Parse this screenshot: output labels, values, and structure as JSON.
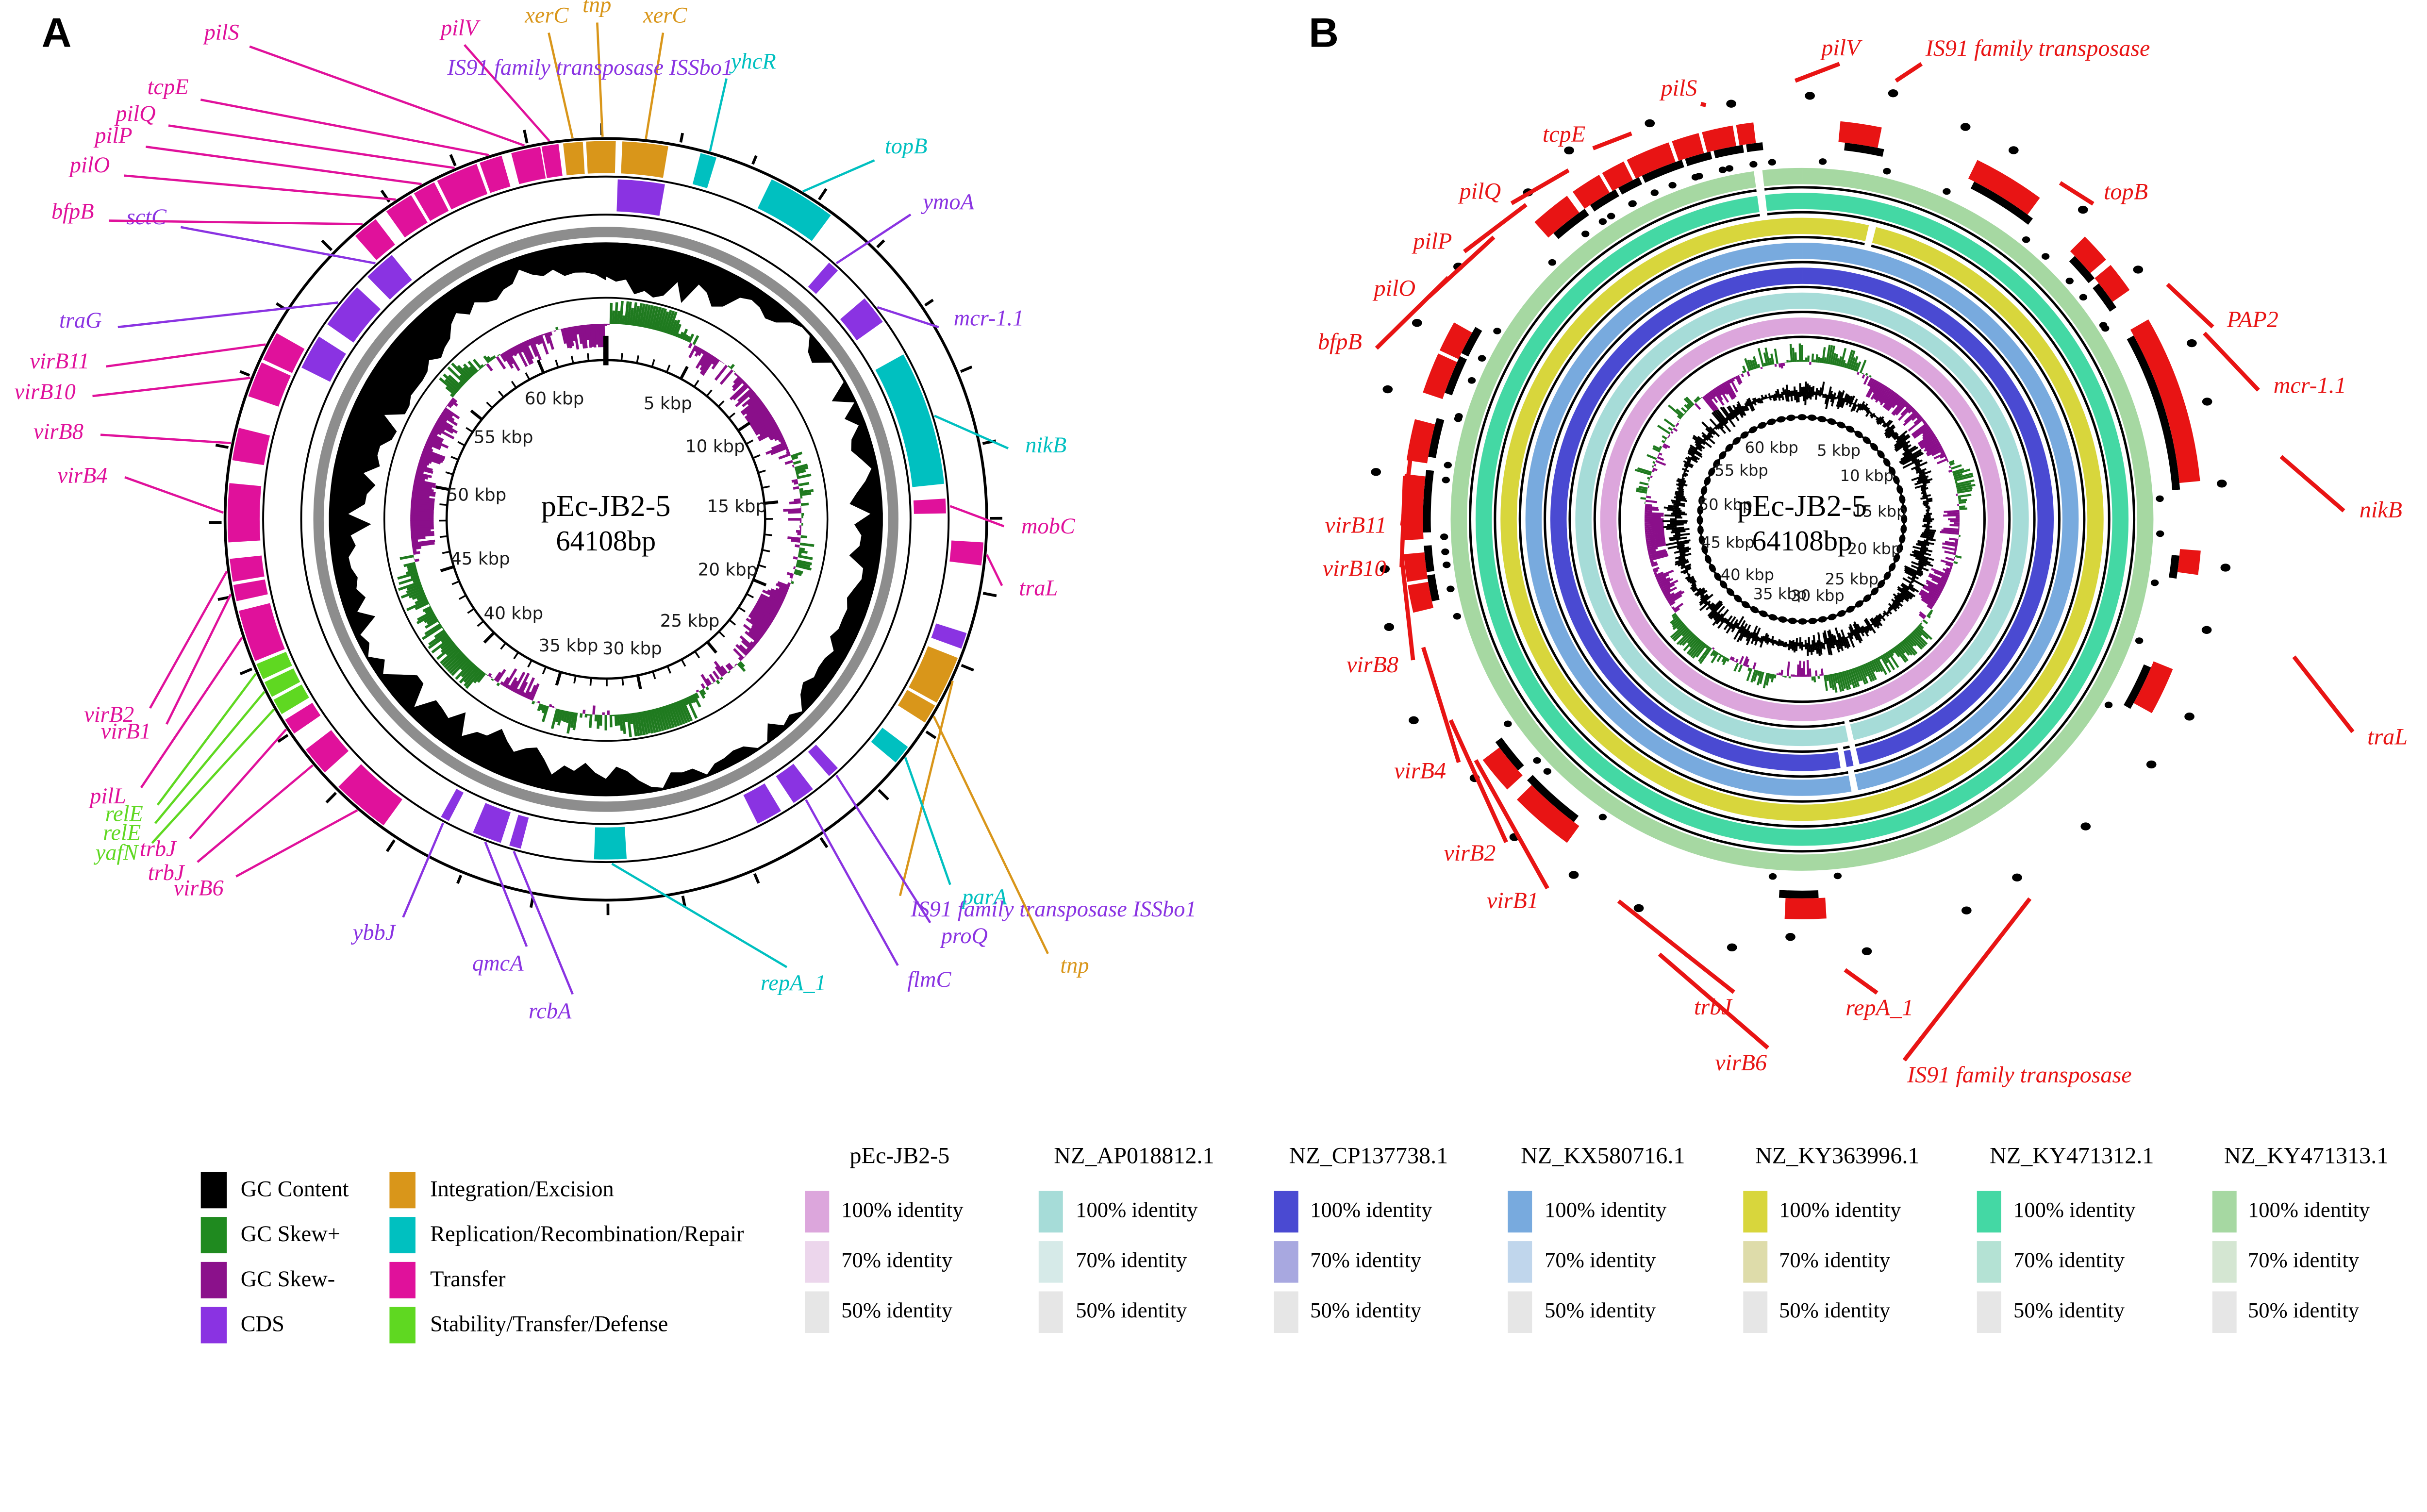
{
  "figure": {
    "background": "#ffffff"
  },
  "chart_data": [
    {
      "type": "circular-genome-map",
      "panel_letter": "A",
      "title": "pEc-JB2-5",
      "subtitle": "64108bp",
      "length_kbp": 64.108,
      "scale_ticks_kbp": [
        5,
        10,
        15,
        20,
        25,
        30,
        35,
        40,
        45,
        50,
        55,
        60
      ],
      "scale_labels": [
        "5 kbp",
        "10 kbp",
        "15 kbp",
        "20 kbp",
        "25 kbp",
        "30 kbp",
        "35 kbp",
        "40 kbp",
        "45 kbp",
        "50 kbp",
        "55 kbp",
        "60 kbp"
      ],
      "scale_unit": "kbp",
      "inner_tracks": [
        "GC Content",
        "GC Skew+",
        "GC Skew-"
      ],
      "category_colors": {
        "transfer": "#e0119b",
        "cds": "#8a33e2",
        "integration": "#d9961a",
        "replication": "#00c0c0",
        "stability": "#5fd821",
        "gc_content": "#000000",
        "gc_skew_plus": "#1f7a1f",
        "gc_skew_minus": "#8a0f8a",
        "gray_ring": "#8d8d8d"
      },
      "genes": [
        {
          "l": "pilV",
          "c": "transfer",
          "r": 1,
          "s": 350.2,
          "e": 352.8,
          "a": 351.5,
          "la": 343.4,
          "lr": 296,
          "an": "middle"
        },
        {
          "l": "xerC",
          "c": "integration",
          "r": 1,
          "s": 353.5,
          "e": 356.5,
          "a": 355,
          "la": 353.3,
          "lr": 293,
          "an": "middle"
        },
        {
          "l": "tnp",
          "c": "integration",
          "r": 1,
          "s": 357,
          "e": 361.5,
          "a": 359.5,
          "la": 359,
          "lr": 297,
          "an": "middle"
        },
        {
          "l": "xerC",
          "c": "integration",
          "r": 1,
          "s": 2.5,
          "e": 9.5,
          "a": 6,
          "la": 6.7,
          "lr": 293,
          "an": "middle"
        },
        {
          "l": "IS91 family transposase ISSbo1",
          "c": "cds",
          "r": 2,
          "s": 2,
          "e": 10,
          "a": 6,
          "la": 358,
          "lr": 261,
          "an": "middle",
          "nl": true
        },
        {
          "l": "yhcR",
          "c": "replication",
          "r": 1,
          "s": 14.5,
          "e": 17,
          "a": 15.8,
          "la": 15.3,
          "lr": 274,
          "an": "start"
        },
        {
          "l": "topB",
          "c": "replication",
          "r": 1,
          "s": 26,
          "e": 36.5,
          "a": 31,
          "la": 36.8,
          "lr": 269,
          "an": "start"
        },
        {
          "l": "ymoA",
          "c": "cds",
          "r": 2,
          "s": 41,
          "e": 43,
          "a": 42,
          "la": 45,
          "lr": 259,
          "an": "start"
        },
        {
          "l": "mcr-1.1",
          "c": "cds",
          "r": 2,
          "s": 49.5,
          "e": 54.5,
          "a": 52,
          "la": 60,
          "lr": 232,
          "an": "start"
        },
        {
          "l": "nikB",
          "c": "replication",
          "r": 2,
          "s": 61,
          "e": 84,
          "a": 72.5,
          "la": 80,
          "lr": 246,
          "an": "start"
        },
        {
          "l": "mobC",
          "c": "transfer",
          "r": 2,
          "s": 86.5,
          "e": 89,
          "a": 87.8,
          "la": 91,
          "lr": 240,
          "an": "start"
        },
        {
          "l": "traL",
          "c": "transfer",
          "r": 1,
          "s": 93.5,
          "e": 97,
          "a": 95.3,
          "la": 99.5,
          "lr": 242,
          "an": "start"
        },
        {
          "l": "IS91 family transposase ISSbo1",
          "c": "integration",
          "lc": "cds",
          "r": 1,
          "s": 111.5,
          "e": 119,
          "a": 115,
          "la": 142,
          "lr": 286,
          "an": "start"
        },
        {
          "l": "tnp",
          "c": "integration",
          "r": 1,
          "s": 119.5,
          "e": 122.5,
          "a": 121,
          "la": 134.5,
          "lr": 368,
          "an": "start"
        },
        {
          "l": "parA",
          "c": "replication",
          "r": 1,
          "s": 127,
          "e": 130,
          "a": 128.5,
          "la": 136.7,
          "lr": 300,
          "an": "start"
        },
        {
          "l": "proQ",
          "c": "cds",
          "r": 2,
          "s": 137,
          "e": 139,
          "a": 138,
          "la": 141.2,
          "lr": 309,
          "an": "start"
        },
        {
          "l": "flmC",
          "c": "cds",
          "r": 2,
          "s": 142.5,
          "e": 146.5,
          "a": 144.5,
          "la": 146.8,
          "lr": 318,
          "an": "start"
        },
        {
          "l": "repA_1",
          "c": "replication",
          "r": 2,
          "s": 176.5,
          "e": 182,
          "a": 179,
          "la": 158,
          "lr": 289,
          "an": "middle"
        },
        {
          "l": "rcbA",
          "c": "cds",
          "r": 2,
          "s": 194.5,
          "e": 196.5,
          "a": 195.5,
          "la": 184,
          "lr": 285,
          "an": "end"
        },
        {
          "l": "qmcA",
          "c": "cds",
          "r": 2,
          "s": 198,
          "e": 203,
          "a": 200.5,
          "la": 190.5,
          "lr": 261,
          "an": "end"
        },
        {
          "l": "ybbJ",
          "c": "cds",
          "r": 2,
          "s": 207.5,
          "e": 209,
          "a": 208.2,
          "la": 207,
          "lr": 268,
          "an": "end"
        },
        {
          "l": "virB6",
          "c": "transfer",
          "r": 1,
          "s": 216,
          "e": 225,
          "a": 220.5,
          "la": 226,
          "lr": 307,
          "an": "end"
        },
        {
          "l": "trbJ",
          "c": "transfer",
          "r": 1,
          "s": 228,
          "e": 232.5,
          "a": 230,
          "la": 230,
          "lr": 318,
          "an": "end"
        },
        {
          "l": "trbJ",
          "c": "transfer",
          "r": 1,
          "s": 235.5,
          "e": 238,
          "a": 236.7,
          "la": 232.5,
          "lr": 313,
          "an": "end"
        },
        {
          "l": "yafN",
          "c": "stability",
          "r": 1,
          "s": 239,
          "e": 241.5,
          "a": 240.2,
          "la": 234.5,
          "lr": 332,
          "an": "end"
        },
        {
          "l": "relE",
          "c": "stability",
          "r": 1,
          "s": 242,
          "e": 244.5,
          "a": 243.2,
          "la": 236,
          "lr": 324,
          "an": "end"
        },
        {
          "l": "relE",
          "c": "stability",
          "r": 1,
          "s": 245,
          "e": 247.5,
          "a": 246.2,
          "la": 237.5,
          "lr": 317,
          "an": "end"
        },
        {
          "l": "pilL",
          "c": "transfer",
          "r": 1,
          "s": 248,
          "e": 256,
          "a": 252,
          "la": 240,
          "lr": 320,
          "an": "end"
        },
        {
          "l": "virB1",
          "c": "transfer",
          "r": 1,
          "s": 257.5,
          "e": 260,
          "a": 258.7,
          "la": 245,
          "lr": 290,
          "an": "end"
        },
        {
          "l": "virB2",
          "c": "transfer",
          "r": 1,
          "s": 260.5,
          "e": 264,
          "a": 262.2,
          "la": 247.5,
          "lr": 295,
          "an": "end"
        },
        {
          "l": "virB4",
          "c": "transfer",
          "r": 1,
          "s": 266.5,
          "e": 275.5,
          "a": 271,
          "la": 275,
          "lr": 289,
          "an": "end"
        },
        {
          "l": "virB8",
          "c": "transfer",
          "r": 1,
          "s": 279,
          "e": 284,
          "a": 281.5,
          "la": 279.5,
          "lr": 306,
          "an": "end"
        },
        {
          "l": "virB10",
          "c": "transfer",
          "r": 1,
          "s": 289,
          "e": 294.5,
          "a": 291.7,
          "la": 283.5,
          "lr": 315,
          "an": "end"
        },
        {
          "l": "virB11",
          "c": "transfer",
          "r": 1,
          "s": 295,
          "e": 299.5,
          "a": 297.2,
          "la": 287,
          "lr": 312,
          "an": "end"
        },
        {
          "l": "traG",
          "c": "cds",
          "r": 2,
          "s": 305,
          "e": 313,
          "a": 309,
          "la": 291.5,
          "lr": 313,
          "an": "end"
        },
        {
          "l": "sctC",
          "c": "cds",
          "r": 2,
          "s": 315.5,
          "e": 321,
          "a": 318,
          "la": 304.5,
          "lr": 308,
          "an": "end"
        },
        {
          "l": "bfpB",
          "c": "transfer",
          "r": 1,
          "s": 318.5,
          "e": 322.5,
          "a": 320.5,
          "la": 301,
          "lr": 345,
          "an": "end"
        },
        {
          "l": "pilO",
          "c": "transfer",
          "r": 1,
          "s": 324.5,
          "e": 329,
          "a": 326.7,
          "la": 305.5,
          "lr": 352,
          "an": "end"
        },
        {
          "l": "pilP",
          "c": "transfer",
          "r": 1,
          "s": 329.5,
          "e": 333,
          "a": 331.2,
          "la": 309,
          "lr": 352,
          "an": "end"
        },
        {
          "l": "pilQ",
          "c": "transfer",
          "r": 1,
          "s": 333.5,
          "e": 340,
          "a": 336.7,
          "la": 312,
          "lr": 350,
          "an": "end"
        },
        {
          "l": "tcpE",
          "c": "transfer",
          "r": 1,
          "s": 340.5,
          "e": 344,
          "a": 342.2,
          "la": 316,
          "lr": 347,
          "an": "end"
        },
        {
          "l": "pilS",
          "c": "transfer",
          "r": 1,
          "s": 345.5,
          "e": 350,
          "a": 347.7,
          "la": 323,
          "lr": 352,
          "an": "end"
        }
      ],
      "unlabeled_arcs": [
        {
          "c": "cds",
          "r": 2,
          "s": 296.5,
          "e": 302.5
        },
        {
          "c": "cds",
          "r": 1,
          "s": 107.5,
          "e": 110
        },
        {
          "c": "cds",
          "r": 2,
          "s": 149,
          "e": 153.5
        }
      ]
    },
    {
      "type": "circular-genome-map-comparison",
      "panel_letter": "B",
      "title": "pEc-JB2-5",
      "subtitle": "64108bp",
      "length_kbp": 64.108,
      "scale_labels": [
        "5 kbp",
        "10 kbp",
        "15 kbp",
        "20 kbp",
        "25 kbp",
        "30 kbp",
        "35 kbp",
        "40 kbp",
        "45 kbp",
        "50 kbp",
        "55 kbp",
        "60 kbp"
      ],
      "gene_color": "#e81414",
      "rings_outer_to_inner": [
        {
          "name": "NZ_KY471313.1",
          "color": "#a6d8a2"
        },
        {
          "name": "NZ_KY471312.1",
          "color": "#44d8a4"
        },
        {
          "name": "NZ_KY363996.1",
          "color": "#d8d63c"
        },
        {
          "name": "NZ_KX580716.1",
          "color": "#78aade"
        },
        {
          "name": "NZ_CP137738.1",
          "color": "#4a4ad2"
        },
        {
          "name": "NZ_AP018812.1",
          "color": "#a6dcd8"
        },
        {
          "name": "pEc-JB2-5",
          "color": "#dca6dc"
        }
      ],
      "ring_gaps": [
        {
          "ring": 0,
          "a": 352.8
        },
        {
          "ring": 1,
          "a": 352.8
        },
        {
          "ring": 2,
          "a": 13.5
        },
        {
          "ring": 3,
          "a": 169
        },
        {
          "ring": 4,
          "a": 167.5
        },
        {
          "ring": 4,
          "a": 170.5
        },
        {
          "ring": 5,
          "a": 167.5
        }
      ],
      "genes": [
        {
          "l": "pilV",
          "s": 350.5,
          "e": 353,
          "a": 351.7,
          "la": 4.7,
          "lr": 273,
          "an": "middle"
        },
        {
          "l": "IS91 family transposase",
          "s": 5.5,
          "e": 11.5,
          "a": 8.5,
          "la": 14.7,
          "lr": 281,
          "an": "start"
        },
        {
          "l": "topB",
          "s": 26,
          "e": 36.5,
          "a": 31,
          "la": 42.7,
          "lr": 257,
          "an": "start"
        },
        {
          "l": "PAP2",
          "s": 45,
          "e": 49.5,
          "a": 47.2,
          "la": 64.9,
          "lr": 271,
          "an": "start"
        },
        {
          "l": "mcr-1.1",
          "s": 50.5,
          "e": 55,
          "a": 52.7,
          "la": 74.2,
          "lr": 283,
          "an": "start"
        },
        {
          "l": "nikB",
          "s": 60,
          "e": 84.5,
          "a": 72.2,
          "la": 89.1,
          "lr": 322,
          "an": "start"
        },
        {
          "l": "traL",
          "s": 94.5,
          "e": 98,
          "a": 96.2,
          "la": 111.1,
          "lr": 350,
          "an": "start"
        },
        {
          "l": "IS91 family transposase",
          "s": 112,
          "e": 119,
          "a": 115.5,
          "la": 169.3,
          "lr": 327,
          "an": "start"
        },
        {
          "l": "repA_1",
          "s": 176.5,
          "e": 182.5,
          "a": 179.5,
          "la": 171,
          "lr": 286,
          "an": "middle"
        },
        {
          "l": "virB6",
          "s": 216,
          "e": 225.5,
          "a": 220.7,
          "la": 183.7,
          "lr": 315,
          "an": "end"
        },
        {
          "l": "trbJ",
          "s": 227.5,
          "e": 233,
          "a": 230.2,
          "la": 188.2,
          "lr": 285,
          "an": "end"
        },
        {
          "l": "virB1",
          "s": 256.5,
          "e": 260.5,
          "a": 258.5,
          "la": 214.6,
          "lr": 268,
          "an": "end"
        },
        {
          "l": "virB2",
          "s": 261,
          "e": 265,
          "a": 263,
          "la": 222.5,
          "lr": 262,
          "an": "end"
        },
        {
          "l": "virB4",
          "s": 267,
          "e": 276.5,
          "a": 271.7,
          "la": 234.7,
          "lr": 252,
          "an": "end"
        },
        {
          "l": "virB8",
          "s": 278.5,
          "e": 284.5,
          "a": 281.5,
          "la": 250.1,
          "lr": 248,
          "an": "end"
        },
        {
          "l": "virB10",
          "s": 288.5,
          "e": 294.5,
          "a": 291.5,
          "la": 263.2,
          "lr": 242,
          "an": "end"
        },
        {
          "l": "virB11",
          "s": 295,
          "e": 299.5,
          "a": 297.2,
          "la": 269.1,
          "lr": 240,
          "an": "end"
        },
        {
          "l": "bfpB",
          "s": 318,
          "e": 324,
          "a": 321,
          "la": 291.9,
          "lr": 274,
          "an": "end"
        },
        {
          "l": "pilO",
          "s": 325,
          "e": 329.5,
          "a": 327.2,
          "la": 300.8,
          "lr": 260,
          "an": "end"
        },
        {
          "l": "pilP",
          "s": 330,
          "e": 333.5,
          "a": 331.7,
          "la": 308.4,
          "lr": 258,
          "an": "end"
        },
        {
          "l": "pilQ",
          "s": 334,
          "e": 340.5,
          "a": 337.2,
          "la": 317.4,
          "lr": 257,
          "an": "end"
        },
        {
          "l": "tcpE",
          "s": 341,
          "e": 345,
          "a": 343,
          "la": 330.6,
          "lr": 255,
          "an": "end"
        },
        {
          "l": "pilS",
          "s": 345.5,
          "e": 350,
          "a": 347.7,
          "la": 346.3,
          "lr": 256,
          "an": "end"
        }
      ]
    }
  ],
  "legend": {
    "feature_columns": [
      {
        "items": [
          {
            "label": "GC Content",
            "color": "#000000"
          },
          {
            "label": "GC Skew+",
            "color": "#1f8a1f"
          },
          {
            "label": "GC Skew-",
            "color": "#8b118b"
          },
          {
            "label": "CDS",
            "color": "#8a33e2"
          }
        ]
      },
      {
        "items": [
          {
            "label": "Integration/Excision",
            "color": "#d9961a"
          },
          {
            "label": "Replication/Recombination/Repair",
            "color": "#00c0c0"
          },
          {
            "label": "Transfer",
            "color": "#e0119b"
          },
          {
            "label": "Stability/Transfer/Defense",
            "color": "#5fd821"
          }
        ]
      }
    ],
    "identity_columns": [
      {
        "title": "pEc-JB2-5",
        "items": [
          {
            "label": "100% identity",
            "color": "#dca6dc"
          },
          {
            "label": "70% identity",
            "color": "#ecd6ec"
          },
          {
            "label": "50% identity",
            "color": "#e6e6e6"
          }
        ]
      },
      {
        "title": "NZ_AP018812.1",
        "items": [
          {
            "label": "100% identity",
            "color": "#a6dcd8"
          },
          {
            "label": "70% identity",
            "color": "#d6eae8"
          },
          {
            "label": "50% identity",
            "color": "#e6e6e6"
          }
        ]
      },
      {
        "title": "NZ_CP137738.1",
        "items": [
          {
            "label": "100% identity",
            "color": "#4a4ad2"
          },
          {
            "label": "70% identity",
            "color": "#a8a8e0"
          },
          {
            "label": "50% identity",
            "color": "#e6e6e6"
          }
        ]
      },
      {
        "title": "NZ_KX580716.1",
        "items": [
          {
            "label": "100% identity",
            "color": "#78aade"
          },
          {
            "label": "70% identity",
            "color": "#c0d6ec"
          },
          {
            "label": "50% identity",
            "color": "#e6e6e6"
          }
        ]
      },
      {
        "title": "NZ_KY363996.1",
        "items": [
          {
            "label": "100% identity",
            "color": "#d8d63c"
          },
          {
            "label": "70% identity",
            "color": "#dedcaa"
          },
          {
            "label": "50% identity",
            "color": "#e6e6e6"
          }
        ]
      },
      {
        "title": "NZ_KY471312.1",
        "items": [
          {
            "label": "100% identity",
            "color": "#44d8a4"
          },
          {
            "label": "70% identity",
            "color": "#b4e2d4"
          },
          {
            "label": "50% identity",
            "color": "#e6e6e6"
          }
        ]
      },
      {
        "title": "NZ_KY471313.1",
        "items": [
          {
            "label": "100% identity",
            "color": "#a6d8a2"
          },
          {
            "label": "70% identity",
            "color": "#d4e6d2"
          },
          {
            "label": "50% identity",
            "color": "#e6e6e6"
          }
        ]
      }
    ]
  }
}
